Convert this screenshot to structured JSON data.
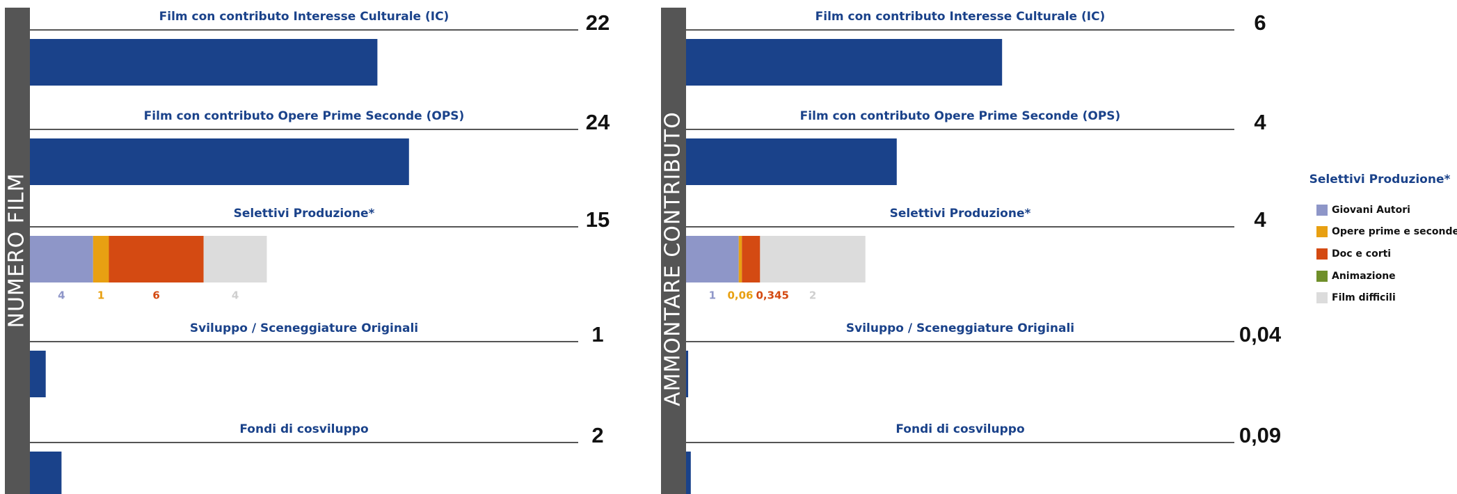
{
  "chart_data": [
    {
      "type": "bar",
      "axis_label": "NUMERO FILM",
      "rows": [
        {
          "label": "Film con contributo Interesse Culturale (IC)",
          "value": 22
        },
        {
          "label": "Film con contributo Opere Prime Seconde (OPS)",
          "value": 24
        },
        {
          "label": "Selettivi Produzione*",
          "value": 15,
          "segments": [
            4,
            1,
            6,
            null,
            4
          ]
        },
        {
          "label": "Sviluppo / Sceneggiature Originali",
          "value": 1
        },
        {
          "label": "Fondi di cosviluppo",
          "value": 2
        }
      ]
    },
    {
      "type": "bar",
      "axis_label": "AMMONTARE CONTRIBUTO",
      "rows": [
        {
          "label": "Film con contributo Interesse Culturale (IC)",
          "value": 6
        },
        {
          "label": "Film con contributo Opere Prime Seconde (OPS)",
          "value": 4
        },
        {
          "label": "Selettivi Produzione*",
          "value": 4,
          "segments": [
            1,
            0.06,
            0.345,
            null,
            2
          ],
          "segment_labels": [
            "1",
            "0,06",
            "0,345",
            null,
            "2"
          ]
        },
        {
          "label": "Sviluppo / Sceneggiature Originali",
          "value": 0.04,
          "value_label": "0,04"
        },
        {
          "label": "Fondi di cosviluppo",
          "value": 0.09,
          "value_label": "0,09"
        }
      ]
    }
  ],
  "legend": {
    "title": "Selettivi Produzione*",
    "bar_color": "#1a428a",
    "series": [
      {
        "name": "Giovani Autori",
        "color": "#8e96c8",
        "label_color": "#8e96c8"
      },
      {
        "name": "Opere prime e seconde",
        "color": "#e8a012",
        "label_color": "#e8a012"
      },
      {
        "name": "Doc e corti",
        "color": "#d44a12",
        "label_color": "#d44a12"
      },
      {
        "name": "Animazione",
        "color": "#6f8f2a",
        "label_color": "#6f8f2a"
      },
      {
        "name": "Film difficili",
        "color": "#dcdcdc",
        "label_color": "#cfcfcf"
      }
    ]
  }
}
